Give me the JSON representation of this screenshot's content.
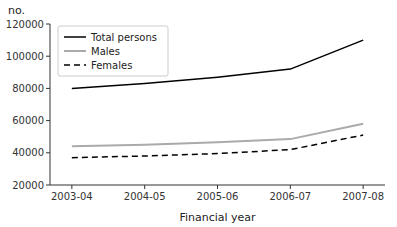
{
  "chart_data": {
    "type": "line",
    "x_label": "Financial year",
    "y_label": "no.",
    "categories": [
      "2003-04",
      "2004-05",
      "2005-06",
      "2006-07",
      "2007-08"
    ],
    "series": [
      {
        "name": "Total persons",
        "color": "#000000",
        "line_style": "solid",
        "values": [
          80000,
          83000,
          87000,
          92000,
          110000
        ]
      },
      {
        "name": "Males",
        "color": "#aaaaaa",
        "line_style": "solid",
        "values": [
          44000,
          45000,
          46500,
          48500,
          58000
        ]
      },
      {
        "name": "Females",
        "color": "#000000",
        "line_style": "dashed",
        "values": [
          37000,
          38000,
          39500,
          42000,
          51000
        ]
      }
    ],
    "ylim": [
      20000,
      120000
    ],
    "yticks": [
      20000,
      40000,
      60000,
      80000,
      100000,
      120000
    ],
    "grid": false,
    "legend": "upper left"
  }
}
